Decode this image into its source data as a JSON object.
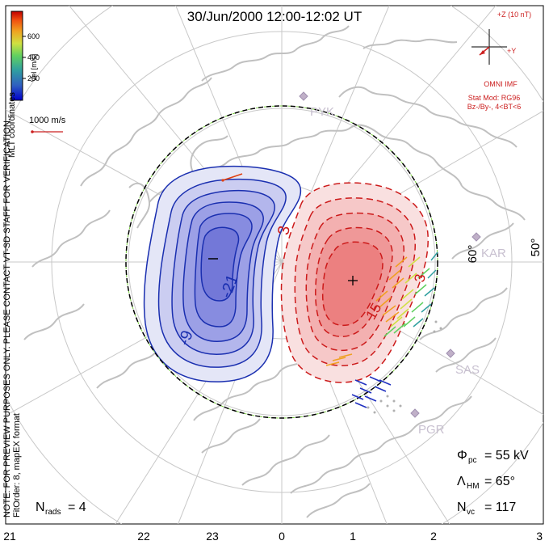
{
  "title": "30/Jun/2000 12:00-12:02 UT",
  "colorbar": {
    "title": "Vel [m/s]",
    "ticks": [
      "600",
      "400",
      "200"
    ],
    "colors": [
      "#0000cc",
      "#3060c0",
      "#30a0a0",
      "#60d060",
      "#d0e040",
      "#f0a020",
      "#f05010",
      "#c00000"
    ]
  },
  "coordinate_label": "MLT coordinates",
  "scale_vector": {
    "label": "1000 m/s",
    "color": "#cc2020"
  },
  "imf": {
    "z_label": "+Z (10 nT)",
    "y_label": "+Y",
    "source": "OMNI IMF",
    "model": "Stat Mod: RG96",
    "model_params": "Bz-/By-, 4<BT<6",
    "color": "#cc2020"
  },
  "stations": [
    "PYK",
    "KAR",
    "SAS",
    "PGR"
  ],
  "latitude_labels": [
    "60°",
    "50°"
  ],
  "contour_labels": {
    "negative": [
      "-",
      "-21",
      "-9"
    ],
    "positive": [
      "3",
      "3",
      "15"
    ],
    "min_marker": "−",
    "max_marker": "+"
  },
  "stats": {
    "phi_pc_label": "Φ",
    "phi_pc_sub": "pc",
    "phi_pc_value": "= 55 kV",
    "lambda_label": "Λ",
    "lambda_sub": "HM",
    "lambda_value": "= 65°",
    "nvc_label": "N",
    "nvc_sub": "vc",
    "nvc_value": "= 117",
    "nrads_label": "N",
    "nrads_sub": "rads",
    "nrads_value": "= 4"
  },
  "side_note": "NOTE: FOR PREVIEW PURPOSES ONLY. PLEASE CONTACT VT-SD STAFF FOR VERIFICATION.",
  "fit_note": "FitOrder: 8, mapEX format",
  "mlt_axis": [
    "21",
    "22",
    "23",
    "0",
    "1",
    "2",
    "3"
  ],
  "colors": {
    "negative_line": "#1a2fb0",
    "negative_fill": "#7a80e0",
    "positive_line": "#cc1a1a",
    "positive_fill": "#f08080",
    "grid": "#c8c8c8",
    "coast": "#c0c0c0"
  }
}
